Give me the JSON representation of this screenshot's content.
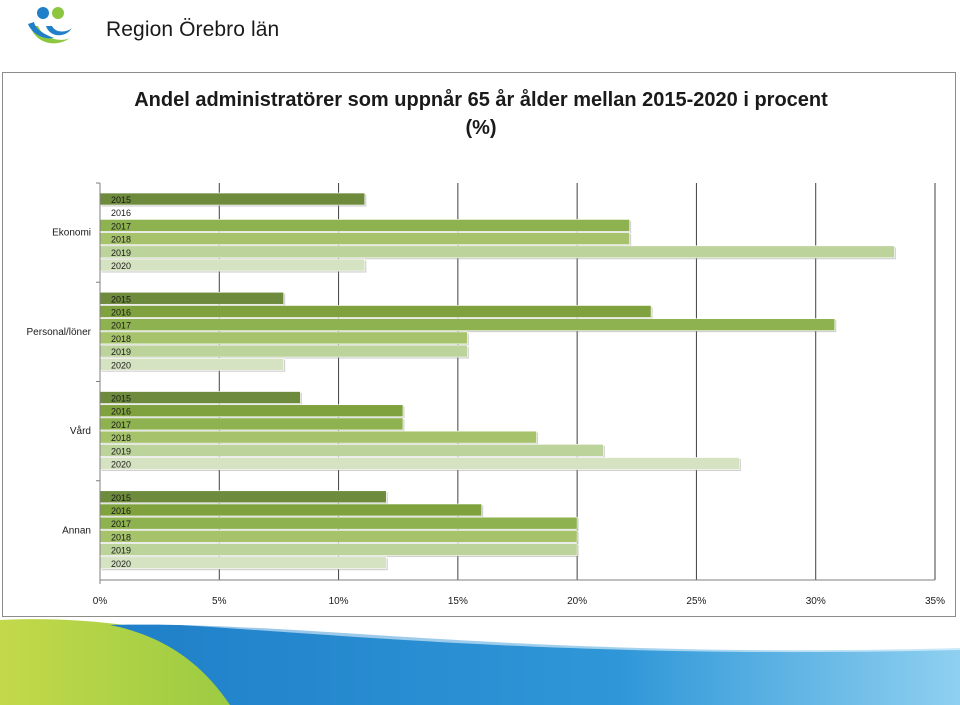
{
  "header": {
    "org_name": "Region Örebro län"
  },
  "colors": {
    "y2015": "#6e8b3d",
    "y2016": "#7fa23f",
    "y2017": "#8db24f",
    "y2018": "#a6c36c",
    "y2019": "#bcd39b",
    "y2020": "#d6e3c2",
    "grid": "#404040",
    "logo_blue": "#1f7fc8",
    "logo_green": "#8dc63f"
  },
  "chart_data": {
    "type": "bar",
    "orientation": "horizontal",
    "title": "Andel administratörer som uppnår 65 år ålder mellan 2015-2020 i procent",
    "subtitle": "(%)",
    "xlabel": "",
    "ylabel": "",
    "xlim": [
      0,
      35
    ],
    "x_ticks": [
      "0%",
      "5%",
      "10%",
      "15%",
      "20%",
      "25%",
      "30%",
      "35%"
    ],
    "grid": true,
    "legend": "none",
    "categories": [
      "Ekonomi",
      "Personal/löner",
      "Vård",
      "Annan"
    ],
    "series": [
      {
        "name": "2015",
        "values": [
          11.1,
          7.7,
          8.4,
          12.0
        ]
      },
      {
        "name": "2016",
        "values": [
          0,
          23.1,
          12.7,
          16.0
        ]
      },
      {
        "name": "2017",
        "values": [
          22.2,
          30.8,
          12.7,
          20.0
        ]
      },
      {
        "name": "2018",
        "values": [
          22.2,
          15.4,
          18.3,
          20.0
        ]
      },
      {
        "name": "2019",
        "values": [
          33.3,
          15.4,
          21.1,
          20.0
        ]
      },
      {
        "name": "2020",
        "values": [
          11.1,
          7.7,
          26.8,
          12.0
        ]
      }
    ]
  }
}
